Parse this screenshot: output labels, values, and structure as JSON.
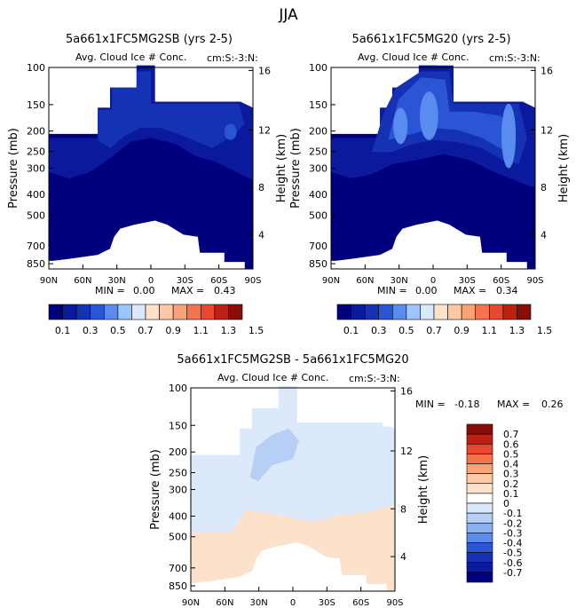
{
  "chart_data": [
    {
      "type": "heatmap",
      "season": "JJA",
      "title": "5a661x1FC5MG2SB (yrs 2-5)",
      "subtitle": "Avg. Cloud Ice # Conc.",
      "units": "cm:S:-3:N:",
      "ylabel": "Pressure (mb)",
      "ylabel_right": "Height (km)",
      "xticks": [
        "90N",
        "60N",
        "30N",
        "0",
        "30S",
        "60S",
        "90S"
      ],
      "yticks": [
        "100",
        "150",
        "200",
        "250",
        "300",
        "400",
        "500",
        "700",
        "850"
      ],
      "height_ticks": [
        "16",
        "12",
        "8",
        "4"
      ],
      "stats": {
        "min_label": "MIN =",
        "min": "0.00",
        "max_label": "MAX =",
        "max": "0.43"
      },
      "levels": [
        "0.1",
        "0.3",
        "0.5",
        "0.7",
        "0.9",
        "1.1",
        "1.3",
        "1.5"
      ]
    },
    {
      "type": "heatmap",
      "title": "5a661x1FC5MG20 (yrs 2-5)",
      "subtitle": "Avg. Cloud Ice # Conc.",
      "units": "cm:S:-3:N:",
      "ylabel": "Pressure (mb)",
      "ylabel_right": "Height (km)",
      "xticks": [
        "90N",
        "60N",
        "30N",
        "0",
        "30S",
        "60S",
        "90S"
      ],
      "yticks": [
        "100",
        "150",
        "200",
        "250",
        "300",
        "400",
        "500",
        "700",
        "850"
      ],
      "height_ticks": [
        "16",
        "12",
        "8",
        "4"
      ],
      "stats": {
        "min_label": "MIN =",
        "min": "0.00",
        "max_label": "MAX =",
        "max": "0.34"
      },
      "levels": [
        "0.1",
        "0.3",
        "0.5",
        "0.7",
        "0.9",
        "1.1",
        "1.3",
        "1.5"
      ]
    },
    {
      "type": "heatmap",
      "title": "5a661x1FC5MG2SB - 5a661x1FC5MG20",
      "subtitle": "Avg. Cloud Ice # Conc.",
      "units": "cm:S:-3:N:",
      "ylabel": "Pressure (mb)",
      "ylabel_right": "Height (km)",
      "xticks": [
        "90N",
        "60N",
        "30N",
        "0",
        "30S",
        "60S",
        "90S"
      ],
      "yticks": [
        "100",
        "150",
        "200",
        "250",
        "300",
        "400",
        "500",
        "700",
        "850"
      ],
      "height_ticks": [
        "16",
        "12",
        "8",
        "4"
      ],
      "stats": {
        "min_label": "MIN =",
        "min": "-0.18",
        "max_label": "MAX =",
        "max": "0.26"
      },
      "levels": [
        "0.7",
        "0.6",
        "0.5",
        "0.4",
        "0.3",
        "0.2",
        "0.1",
        "0",
        "-0.1",
        "-0.2",
        "-0.3",
        "-0.4",
        "-0.5",
        "-0.6",
        "-0.7"
      ]
    }
  ],
  "colors": {
    "dark_navy": "#00007f",
    "navy": "#0b1a9c",
    "blue": "#1632b4",
    "mid_blue": "#2a56d6",
    "light_blue": "#5a8cf0",
    "pale_blue": "#9ec4ff",
    "very_pale_blue": "#dbe9fc",
    "pale_peach": "#fde3cc",
    "peach": "#fcc9a6",
    "salmon": "#f8a477",
    "orange": "#f5744e",
    "red_orange": "#e8482f",
    "red": "#c02014",
    "dark_red": "#8a0c08",
    "diff_blue_field": "#dce9fb",
    "diff_blue_patch": "#b7cff4",
    "diff_peach_field": "#fde2cb"
  }
}
